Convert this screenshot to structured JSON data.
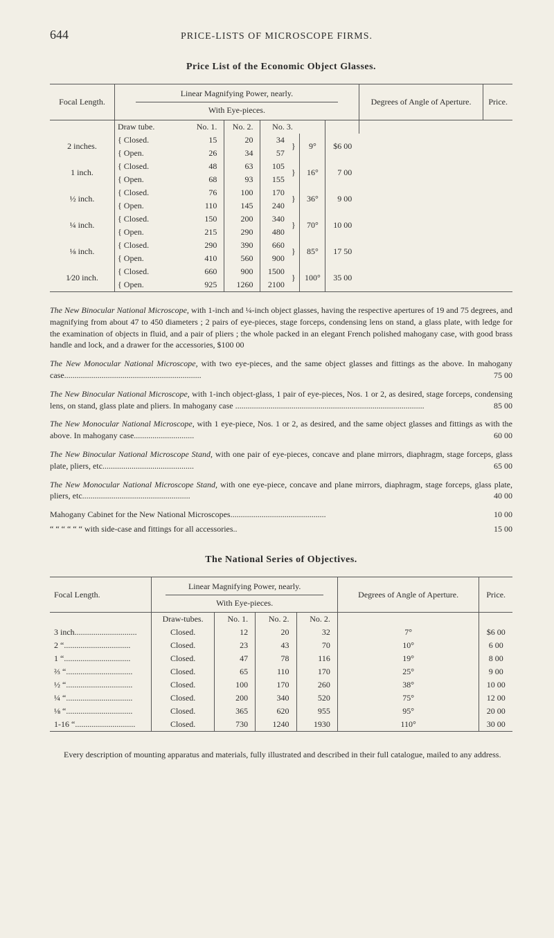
{
  "page_number": "644",
  "running_head": "PRICE-LISTS OF MICROSCOPE FIRMS.",
  "section1_title": "Price List of the Economic Object Glasses.",
  "table1": {
    "header": {
      "focal_length": "Focal Length.",
      "linear_mag": "Linear Magnifying Power, nearly.",
      "with_eye": "With Eye-pieces.",
      "degrees": "Degrees of Angle of Aperture.",
      "price": "Price.",
      "draw_tube": "Draw tube.",
      "no1": "No. 1.",
      "no2": "No. 2.",
      "no3": "No. 3."
    },
    "rows": [
      {
        "focal": "2 inches.",
        "a": "Closed.",
        "b": "Open.",
        "n1a": "15",
        "n1b": "26",
        "n2a": "20",
        "n2b": "34",
        "n3a": "34",
        "n3b": "57",
        "deg": "9°",
        "price": "$6 00"
      },
      {
        "focal": "1 inch.",
        "a": "Closed.",
        "b": "Open.",
        "n1a": "48",
        "n1b": "68",
        "n2a": "63",
        "n2b": "93",
        "n3a": "105",
        "n3b": "155",
        "deg": "16°",
        "price": "7 00"
      },
      {
        "focal": "½ inch.",
        "a": "Closed.",
        "b": "Open.",
        "n1a": "76",
        "n1b": "110",
        "n2a": "100",
        "n2b": "145",
        "n3a": "170",
        "n3b": "240",
        "deg": "36°",
        "price": "9 00"
      },
      {
        "focal": "¼ inch.",
        "a": "Closed.",
        "b": "Open.",
        "n1a": "150",
        "n1b": "215",
        "n2a": "200",
        "n2b": "290",
        "n3a": "340",
        "n3b": "480",
        "deg": "70°",
        "price": "10 00"
      },
      {
        "focal": "⅛ inch.",
        "a": "Closed.",
        "b": "Open.",
        "n1a": "290",
        "n1b": "410",
        "n2a": "390",
        "n2b": "560",
        "n3a": "660",
        "n3b": "900",
        "deg": "85°",
        "price": "17 50"
      },
      {
        "focal": "1⁄20 inch.",
        "a": "Closed.",
        "b": "Open.",
        "n1a": "660",
        "n1b": "925",
        "n2a": "900",
        "n2b": "1260",
        "n3a": "1500",
        "n3b": "2100",
        "deg": "100°",
        "price": "35 00"
      }
    ]
  },
  "para1_lead": "The New Binocular National Microscope,",
  "para1_body": " with 1-inch and ¼-inch object glasses, having the respective apertures of 19 and 75 degrees, and magnifying from about 47 to 450 diameters ; 2 pairs of eye-pieces, stage forceps, condensing lens on stand, a glass plate, with ledge for the examination of objects in fluid, and a pair of pliers ; the whole packed in an elegant French polished mahogany case, with good brass handle and lock, and a drawer for the accessories, $100 00",
  "para2_lead": "The New Monocular National Microscope,",
  "para2_body": " with two eye-pieces, and the same object glasses and fittings as the above.   In mahogany case",
  "para2_price": "75 00",
  "para3_lead": "The New Binocular National Microscope,",
  "para3_body": " with 1-inch object-glass, 1 pair of eye-pieces, Nos. 1 or 2, as desired, stage forceps, condensing lens, on stand, glass plate and pliers.   In mahogany case",
  "para3_price": "85 00",
  "para4_lead": "The New Monocular National Microscope,",
  "para4_body": " with 1 eye-piece, Nos. 1 or 2, as desired, and the same object glasses and fittings as with the above.   In mahogany case",
  "para4_price": "60 00",
  "para5_lead": "The New Binocular National Microscope Stand,",
  "para5_body": " with one pair of eye-pieces, concave and plane mirrors, diaphragm, stage forceps, glass plate, pliers, etc",
  "para5_price": "65 00",
  "para6_lead": "The New Monocular National Microscope Stand,",
  "para6_body": " with one eye-piece, concave and plane mirrors, diaphragm, stage forceps, glass plate, pliers, etc",
  "para6_price": "40 00",
  "para7a": "Mahogany Cabinet for the New National Microscopes",
  "para7a_price": "10 00",
  "para7b": "“          “          “          “          “          “     with side-case and fittings for all accessories..",
  "para7b_price": "15 00",
  "section2_title": "The National Series of Objectives.",
  "table2": {
    "header": {
      "focal_length": "Focal Length.",
      "linear_mag": "Linear Magnifying Power, nearly.",
      "with_eye": "With Eye-pieces.",
      "degrees": "Degrees of Angle of Aperture.",
      "price": "Price.",
      "draw_tubes": "Draw-tubes.",
      "no1": "No. 1.",
      "no2": "No. 2.",
      "no3": "No. 2."
    },
    "rows": [
      {
        "focal": "3   inch",
        "dots": "..............................",
        "dt": "Closed.",
        "n1": "12",
        "n2": "20",
        "n3": "32",
        "deg": "7°",
        "price": "$6 00"
      },
      {
        "focal": "2   “",
        "dots": "................................",
        "dt": "Closed.",
        "n1": "23",
        "n2": "43",
        "n3": "70",
        "deg": "10°",
        "price": "6 00"
      },
      {
        "focal": "1   “",
        "dots": "................................",
        "dt": "Closed.",
        "n1": "47",
        "n2": "78",
        "n3": "116",
        "deg": "19°",
        "price": "8 00"
      },
      {
        "focal": "⅔   “",
        "dots": "................................",
        "dt": "Closed.",
        "n1": "65",
        "n2": "110",
        "n3": "170",
        "deg": "25°",
        "price": "9 00"
      },
      {
        "focal": "½   “",
        "dots": "................................",
        "dt": "Closed.",
        "n1": "100",
        "n2": "170",
        "n3": "260",
        "deg": "38°",
        "price": "10 00"
      },
      {
        "focal": "¼   “",
        "dots": "................................",
        "dt": "Closed.",
        "n1": "200",
        "n2": "340",
        "n3": "520",
        "deg": "75°",
        "price": "12 00"
      },
      {
        "focal": "⅛   “",
        "dots": "................................",
        "dt": "Closed.",
        "n1": "365",
        "n2": "620",
        "n3": "955",
        "deg": "95°",
        "price": "20 00"
      },
      {
        "focal": "1-16 “",
        "dots": ".............................",
        "dt": "Closed.",
        "n1": "730",
        "n2": "1240",
        "n3": "1930",
        "deg": "110°",
        "price": "30 00"
      }
    ]
  },
  "footnote": "Every description of mounting apparatus and materials, fully illustrated and described in their full catalogue, mailed to any address."
}
